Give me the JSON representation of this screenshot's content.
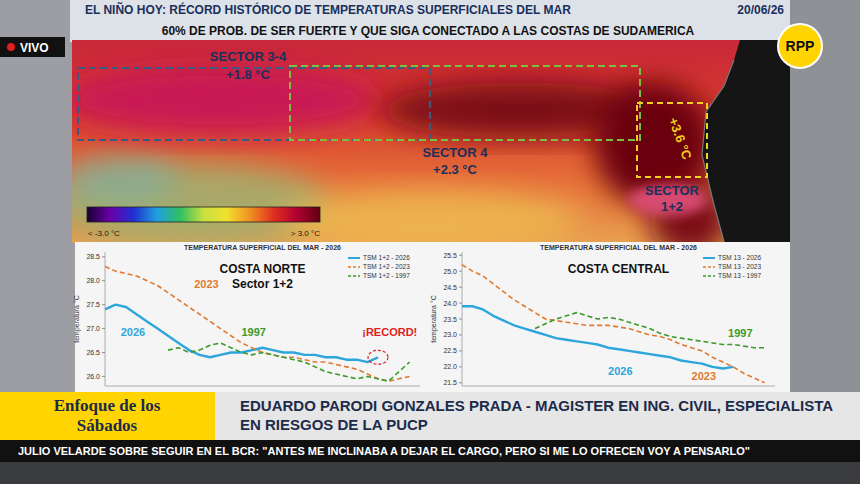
{
  "header": {
    "title": "EL NIÑO HOY: RÉCORD HISTÓRICO DE TEMPERATURAS SUPERFICIALES DEL MAR",
    "date": "20/06/26",
    "subtitle": "60% DE PROB. DE SER FUERTE Y QUE SIGA CONECTADO A LAS COSTAS DE SUDAMERICA"
  },
  "live": "VIVO",
  "logo": "RPP",
  "map": {
    "sectors": [
      {
        "name": "SECTOR 3-4",
        "anomaly": "+1.8 °C"
      },
      {
        "name": "SECTOR 4",
        "anomaly": "+2.3 °C"
      },
      {
        "name": "SECTOR 1+2",
        "anomaly": "+3.6 °C"
      }
    ],
    "colorbar": {
      "min_label": "< -3.0 °C",
      "max_label": "> 3.0 °C"
    }
  },
  "panel_headings": [
    "TEMPERATURA SUPERFICIAL DEL MAR - 2026",
    "TEMPERATURA SUPERFICIAL DEL MAR - 2026"
  ],
  "chart_data": [
    {
      "type": "line",
      "title": "COSTA NORTE",
      "subtitle": "Sector 1+2",
      "ylabel": "temperatura °C",
      "x": [
        0,
        1,
        2,
        3,
        4,
        5,
        6,
        7,
        8,
        9,
        10,
        11,
        12,
        13,
        14,
        15,
        16,
        17,
        18,
        19,
        20,
        21,
        22,
        23,
        24,
        25,
        26,
        27,
        28,
        29
      ],
      "xlim": [
        0,
        30
      ],
      "ylim": [
        25.8,
        28.6
      ],
      "yticks": [
        {
          "value": 26,
          "label": "26.0"
        },
        26.5,
        {
          "value": 27,
          "label": "27.0"
        },
        27.5,
        {
          "value": 28,
          "label": "28.0"
        },
        28.5
      ],
      "grid": false,
      "tick_labels": "y",
      "legend": "upper right",
      "series": [
        {
          "name": "TSM 1+2 - 2026",
          "color": "#2ea6dc",
          "line_style": "solid",
          "values": [
            27.4,
            27.5,
            27.45,
            27.3,
            27.15,
            27.0,
            26.85,
            26.7,
            26.55,
            26.45,
            26.4,
            26.45,
            26.5,
            26.5,
            26.55,
            26.6,
            26.55,
            26.5,
            26.5,
            26.45,
            26.45,
            26.4,
            26.4,
            26.35,
            26.35,
            26.3,
            26.4,
            null,
            null,
            null
          ]
        },
        {
          "name": "TSM 1+2 - 2023",
          "color": "#e07a30",
          "line_style": "dashed",
          "values": [
            28.3,
            28.2,
            28.15,
            28.1,
            28.0,
            27.9,
            27.75,
            27.6,
            27.45,
            27.3,
            27.15,
            27.0,
            26.85,
            26.7,
            26.6,
            26.5,
            26.45,
            26.4,
            26.4,
            26.35,
            26.3,
            26.3,
            26.25,
            26.2,
            26.15,
            26.05,
            25.95,
            25.9,
            25.95,
            26.0
          ]
        },
        {
          "name": "TSM 1+2 - 1997",
          "color": "#3a9a2a",
          "line_style": "dashed",
          "values": [
            null,
            null,
            null,
            null,
            null,
            null,
            26.55,
            26.6,
            26.5,
            26.55,
            26.65,
            26.7,
            26.6,
            26.5,
            26.45,
            26.5,
            26.45,
            26.4,
            26.35,
            26.3,
            26.2,
            26.1,
            26.05,
            26.0,
            25.95,
            26.0,
            25.95,
            25.9,
            26.1,
            26.3
          ]
        }
      ],
      "annotations": [
        {
          "text": "2023",
          "x": 8.5,
          "y": 27.85
        },
        {
          "text": "2026",
          "x": 1.5,
          "y": 26.85
        },
        {
          "text": "1997",
          "x": 13,
          "y": 26.85
        },
        {
          "text": "¡RECORD!",
          "x": 24.5,
          "y": 26.85
        }
      ]
    },
    {
      "type": "line",
      "title": "COSTA CENTRAL",
      "ylabel": "temperatura °C",
      "x": [
        0,
        1,
        2,
        3,
        4,
        5,
        6,
        7,
        8,
        9,
        10,
        11,
        12,
        13,
        14,
        15,
        16,
        17,
        18,
        19,
        20,
        21,
        22,
        23,
        24,
        25,
        26,
        27,
        28,
        29
      ],
      "xlim": [
        0,
        30
      ],
      "ylim": [
        21.4,
        25.6
      ],
      "yticks": [
        21.5,
        {
          "value": 22,
          "label": "22.0"
        },
        22.5,
        {
          "value": 23,
          "label": "23.0"
        },
        23.5,
        {
          "value": 24,
          "label": "24.0"
        },
        24.5,
        {
          "value": 25,
          "label": "25.0"
        },
        25.5
      ],
      "grid": false,
      "tick_labels": "y",
      "legend": "upper right",
      "series": [
        {
          "name": "TSM 13 - 2026",
          "color": "#2ea6dc",
          "line_style": "solid",
          "values": [
            23.9,
            23.9,
            23.8,
            23.6,
            23.45,
            23.3,
            23.2,
            23.1,
            23.0,
            22.9,
            22.85,
            22.8,
            22.75,
            22.7,
            22.6,
            22.55,
            22.5,
            22.45,
            22.4,
            22.35,
            22.3,
            22.2,
            22.15,
            22.1,
            22.0,
            21.95,
            22.0,
            null,
            null,
            null
          ]
        },
        {
          "name": "TSM 13 - 2023",
          "color": "#e07a30",
          "line_style": "dashed",
          "values": [
            25.2,
            25.0,
            24.85,
            24.6,
            24.35,
            24.1,
            23.9,
            23.7,
            23.5,
            23.45,
            23.4,
            23.35,
            23.3,
            23.3,
            23.3,
            23.25,
            23.2,
            23.1,
            23.0,
            22.95,
            22.85,
            22.7,
            22.6,
            22.5,
            22.3,
            22.15,
            22.0,
            21.8,
            21.65,
            21.5
          ]
        },
        {
          "name": "TSM 13 - 1997",
          "color": "#3a9a2a",
          "line_style": "dashed",
          "values": [
            null,
            null,
            null,
            null,
            null,
            null,
            null,
            23.2,
            23.35,
            23.5,
            23.6,
            23.7,
            23.6,
            23.5,
            23.55,
            23.5,
            23.4,
            23.3,
            23.2,
            23.05,
            22.95,
            22.9,
            22.85,
            22.8,
            22.75,
            22.7,
            22.7,
            22.65,
            22.6,
            22.6
          ]
        }
      ],
      "annotations": [
        {
          "text": "1997",
          "x": 25.5,
          "y": 22.95
        },
        {
          "text": "2026",
          "x": 14,
          "y": 21.75
        },
        {
          "text": "2023",
          "x": 22,
          "y": 21.6
        }
      ]
    }
  ],
  "lower_third": {
    "program": "Enfoque de los Sábados",
    "guest": "EDUARDO PARODI GONZALES PRADA - MAGISTER EN ING. CIVIL, ESPECIALISTA EN RIESGOS DE LA PUCP",
    "ticker": "JULIO VELARDE SOBRE SEGUIR EN EL BCR: \"ANTES ME INCLINABA A DEJAR EL CARGO, PERO SI ME LO OFRECEN VOY A PENSARLO\""
  }
}
